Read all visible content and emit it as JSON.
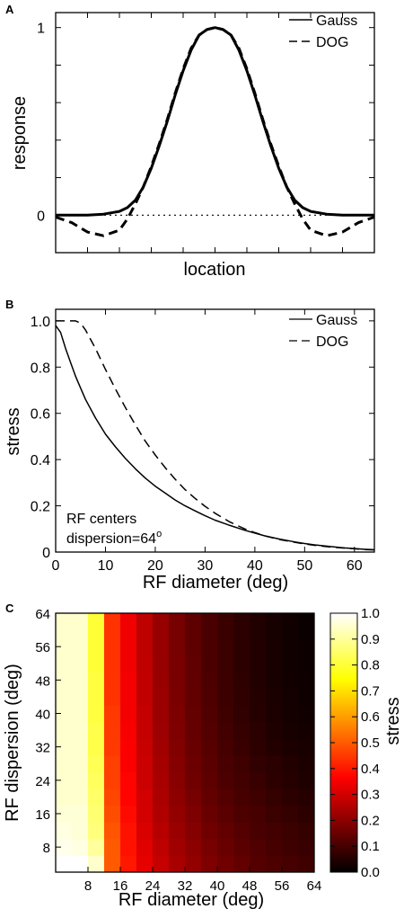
{
  "chart_data": [
    {
      "panel": "A",
      "type": "line",
      "xlabel": "location",
      "ylabel": "response",
      "ytick_labels": [
        "0",
        "1"
      ],
      "yticks": [
        0,
        1
      ],
      "ylim": [
        -0.2,
        1.08
      ],
      "xlim": [
        -5,
        5
      ],
      "legend": {
        "position": "top-right",
        "entries": [
          "Gauss",
          "DOG"
        ]
      },
      "series": [
        {
          "name": "Gauss",
          "style": "solid",
          "x": [
            -5,
            -4.5,
            -4,
            -3.5,
            -3,
            -2.75,
            -2.5,
            -2.25,
            -2,
            -1.75,
            -1.5,
            -1.25,
            -1,
            -0.75,
            -0.5,
            -0.25,
            0,
            0.25,
            0.5,
            0.75,
            1,
            1.25,
            1.5,
            1.75,
            2,
            2.25,
            2.5,
            2.75,
            3,
            3.5,
            4,
            4.5,
            5
          ],
          "y": [
            0,
            0,
            0,
            0.005,
            0.02,
            0.04,
            0.08,
            0.15,
            0.25,
            0.37,
            0.5,
            0.64,
            0.77,
            0.88,
            0.96,
            0.99,
            1,
            0.99,
            0.96,
            0.88,
            0.77,
            0.64,
            0.5,
            0.37,
            0.25,
            0.15,
            0.08,
            0.04,
            0.02,
            0.005,
            0,
            0,
            0
          ]
        },
        {
          "name": "DOG",
          "style": "dashed",
          "x": [
            -5,
            -4.5,
            -4,
            -3.5,
            -3,
            -2.75,
            -2.5,
            -2.25,
            -2,
            -1.75,
            -1.5,
            -1.25,
            -1,
            -0.75,
            -0.5,
            -0.25,
            0,
            0.25,
            0.5,
            0.75,
            1,
            1.25,
            1.5,
            1.75,
            2,
            2.25,
            2.5,
            2.75,
            3,
            3.5,
            4,
            4.5,
            5
          ],
          "y": [
            -0.01,
            -0.04,
            -0.09,
            -0.11,
            -0.08,
            -0.02,
            0.06,
            0.15,
            0.26,
            0.38,
            0.51,
            0.65,
            0.78,
            0.89,
            0.96,
            0.99,
            1,
            0.99,
            0.96,
            0.89,
            0.78,
            0.65,
            0.51,
            0.38,
            0.26,
            0.15,
            0.06,
            -0.02,
            -0.08,
            -0.11,
            -0.09,
            -0.04,
            -0.01
          ]
        },
        {
          "name": "",
          "style": "dotted",
          "x": [
            -5,
            5
          ],
          "y": [
            0,
            0
          ]
        }
      ]
    },
    {
      "panel": "B",
      "type": "line",
      "xlabel": "RF diameter (deg)",
      "ylabel": "stress",
      "xlim": [
        0,
        64
      ],
      "ylim": [
        0,
        1.05
      ],
      "xticks": [
        0,
        10,
        20,
        30,
        40,
        50,
        60
      ],
      "xtick_labels": [
        "0",
        "10",
        "20",
        "30",
        "40",
        "50",
        "60"
      ],
      "yticks": [
        0,
        0.2,
        0.4,
        0.6,
        0.8,
        1.0
      ],
      "ytick_labels": [
        "0",
        "0.2",
        "0.4",
        "0.6",
        "0.8",
        "1.0"
      ],
      "legend": {
        "position": "top-right",
        "entries": [
          "Gauss",
          "DOG"
        ]
      },
      "annotation": {
        "line1": "RF centers",
        "line2_prefix": "dispersion=64",
        "line2_sup": "o"
      },
      "series": [
        {
          "name": "Gauss",
          "style": "solid",
          "x": [
            0,
            1,
            2,
            3,
            4,
            5,
            6,
            8,
            10,
            12,
            14,
            16,
            18,
            20,
            22,
            24,
            26,
            28,
            30,
            32,
            35,
            38,
            40,
            42,
            45,
            48,
            50,
            52,
            55,
            58,
            60,
            62,
            64
          ],
          "y": [
            0.98,
            0.95,
            0.88,
            0.82,
            0.76,
            0.71,
            0.66,
            0.58,
            0.51,
            0.455,
            0.405,
            0.36,
            0.32,
            0.285,
            0.255,
            0.225,
            0.2,
            0.178,
            0.157,
            0.138,
            0.115,
            0.094,
            0.082,
            0.07,
            0.056,
            0.044,
            0.037,
            0.031,
            0.024,
            0.018,
            0.015,
            0.012,
            0.01
          ]
        },
        {
          "name": "DOG",
          "style": "dashed",
          "x": [
            0,
            1,
            2,
            3,
            4,
            5,
            6,
            8,
            10,
            12,
            14,
            16,
            18,
            20,
            22,
            24,
            26,
            28,
            30,
            32,
            35,
            38,
            40,
            42,
            45,
            48,
            50,
            52,
            55,
            58,
            60,
            62,
            64
          ],
          "y": [
            1.0,
            1.0,
            1.0,
            1.0,
            1.0,
            0.99,
            0.96,
            0.88,
            0.79,
            0.705,
            0.625,
            0.55,
            0.48,
            0.42,
            0.365,
            0.315,
            0.27,
            0.232,
            0.198,
            0.168,
            0.13,
            0.1,
            0.084,
            0.07,
            0.054,
            0.042,
            0.035,
            0.029,
            0.022,
            0.017,
            0.014,
            0.011,
            0.009
          ]
        }
      ]
    },
    {
      "panel": "C",
      "type": "heatmap",
      "xlabel": "RF diameter (deg)",
      "ylabel": "RF dispersion (deg)",
      "colorbar_label": "stress",
      "xlim": [
        0,
        64
      ],
      "ylim": [
        2,
        64
      ],
      "xtick_labels": [
        "8",
        "16",
        "24",
        "32",
        "40",
        "48",
        "56",
        "64"
      ],
      "ytick_labels": [
        "8",
        "16",
        "24",
        "32",
        "40",
        "48",
        "56",
        "64"
      ],
      "colorbar_ticks": [
        "0.0",
        "0.1",
        "0.2",
        "0.3",
        "0.4",
        "0.5",
        "0.6",
        "0.7",
        "0.8",
        "0.9",
        "1.0"
      ],
      "colorbar_range": [
        0,
        1
      ],
      "colormap": "hot",
      "x_centers": [
        2,
        6,
        10,
        14,
        18,
        22,
        26,
        30,
        34,
        38,
        42,
        46,
        50,
        54,
        58,
        62
      ],
      "y_centers": [
        4,
        8,
        12,
        16,
        20,
        24,
        28,
        32,
        36,
        40,
        44,
        48,
        52,
        56,
        60,
        64
      ],
      "values": [
        [
          1.0,
          1.0,
          0.95,
          0.5,
          0.4,
          0.33,
          0.28,
          0.24,
          0.21,
          0.18,
          0.16,
          0.14,
          0.12,
          0.11,
          0.1,
          0.09
        ],
        [
          0.98,
          0.97,
          0.9,
          0.5,
          0.39,
          0.32,
          0.27,
          0.23,
          0.2,
          0.17,
          0.15,
          0.13,
          0.115,
          0.1,
          0.09,
          0.08
        ],
        [
          0.97,
          0.96,
          0.87,
          0.49,
          0.39,
          0.31,
          0.26,
          0.22,
          0.19,
          0.16,
          0.14,
          0.12,
          0.105,
          0.095,
          0.085,
          0.075
        ],
        [
          0.96,
          0.96,
          0.86,
          0.48,
          0.38,
          0.3,
          0.25,
          0.21,
          0.18,
          0.15,
          0.13,
          0.11,
          0.1,
          0.085,
          0.075,
          0.065
        ],
        [
          0.95,
          0.95,
          0.85,
          0.47,
          0.37,
          0.3,
          0.245,
          0.2,
          0.17,
          0.14,
          0.12,
          0.1,
          0.09,
          0.075,
          0.065,
          0.055
        ],
        [
          0.95,
          0.95,
          0.84,
          0.46,
          0.37,
          0.29,
          0.24,
          0.195,
          0.16,
          0.135,
          0.11,
          0.095,
          0.08,
          0.065,
          0.055,
          0.045
        ],
        [
          0.95,
          0.95,
          0.83,
          0.46,
          0.36,
          0.29,
          0.235,
          0.19,
          0.155,
          0.13,
          0.105,
          0.09,
          0.07,
          0.06,
          0.05,
          0.04
        ],
        [
          0.95,
          0.95,
          0.82,
          0.45,
          0.36,
          0.285,
          0.23,
          0.185,
          0.15,
          0.125,
          0.1,
          0.08,
          0.065,
          0.05,
          0.04,
          0.035
        ],
        [
          0.95,
          0.95,
          0.82,
          0.45,
          0.355,
          0.28,
          0.225,
          0.18,
          0.145,
          0.12,
          0.095,
          0.075,
          0.06,
          0.045,
          0.035,
          0.03
        ],
        [
          0.95,
          0.95,
          0.81,
          0.45,
          0.35,
          0.28,
          0.22,
          0.178,
          0.142,
          0.115,
          0.09,
          0.07,
          0.055,
          0.04,
          0.03,
          0.025
        ],
        [
          0.95,
          0.95,
          0.81,
          0.44,
          0.35,
          0.275,
          0.22,
          0.175,
          0.14,
          0.112,
          0.088,
          0.068,
          0.052,
          0.038,
          0.028,
          0.022
        ],
        [
          0.95,
          0.95,
          0.81,
          0.44,
          0.35,
          0.275,
          0.218,
          0.173,
          0.138,
          0.11,
          0.086,
          0.066,
          0.05,
          0.036,
          0.026,
          0.02
        ],
        [
          0.95,
          0.95,
          0.8,
          0.44,
          0.345,
          0.272,
          0.216,
          0.172,
          0.137,
          0.108,
          0.085,
          0.065,
          0.049,
          0.035,
          0.025,
          0.018
        ],
        [
          0.95,
          0.95,
          0.8,
          0.44,
          0.345,
          0.27,
          0.215,
          0.171,
          0.136,
          0.107,
          0.084,
          0.064,
          0.048,
          0.034,
          0.024,
          0.017
        ],
        [
          0.95,
          0.95,
          0.8,
          0.44,
          0.345,
          0.27,
          0.214,
          0.17,
          0.135,
          0.106,
          0.083,
          0.063,
          0.047,
          0.033,
          0.023,
          0.016
        ],
        [
          0.95,
          0.95,
          0.8,
          0.44,
          0.345,
          0.27,
          0.214,
          0.17,
          0.135,
          0.106,
          0.083,
          0.063,
          0.047,
          0.033,
          0.023,
          0.016
        ]
      ]
    }
  ]
}
